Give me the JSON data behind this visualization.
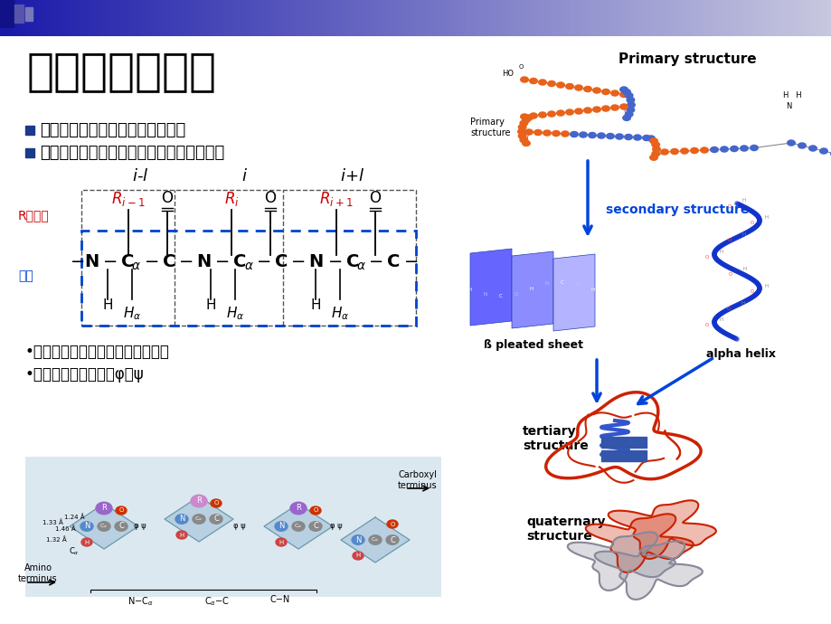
{
  "title": "蛋白质结构层次",
  "bullet1": "氨基酸通过肽键形成的生物高分子",
  "bullet2": "一级结构、二级结构、三级结构、四级结构",
  "note1": "•肽键具有双键性质而不能任意旋转",
  "note2": "•主链可旋转的二面角φ，ψ",
  "r_label": "R：侧链",
  "main_chain_label": "主链",
  "bg_color": "#FFFFFF",
  "title_color": "#000000",
  "bullet_sq_color": "#1a3a8a",
  "r_color": "#CC0000",
  "blue_chain_color": "#0044cc",
  "primary_label": "Primary structure",
  "secondary_label": "secondary structure",
  "beta_label": "ß pleated sheet",
  "helix_label": "alpha helix",
  "tertiary_label": "tertiary\nstructure",
  "quaternary_label": "quaternary\nstructure",
  "primary_small": "Primary\nstructure",
  "carboxyl_label": "Carboxyl\nterminus",
  "amino_label": "Amino\nterminus"
}
